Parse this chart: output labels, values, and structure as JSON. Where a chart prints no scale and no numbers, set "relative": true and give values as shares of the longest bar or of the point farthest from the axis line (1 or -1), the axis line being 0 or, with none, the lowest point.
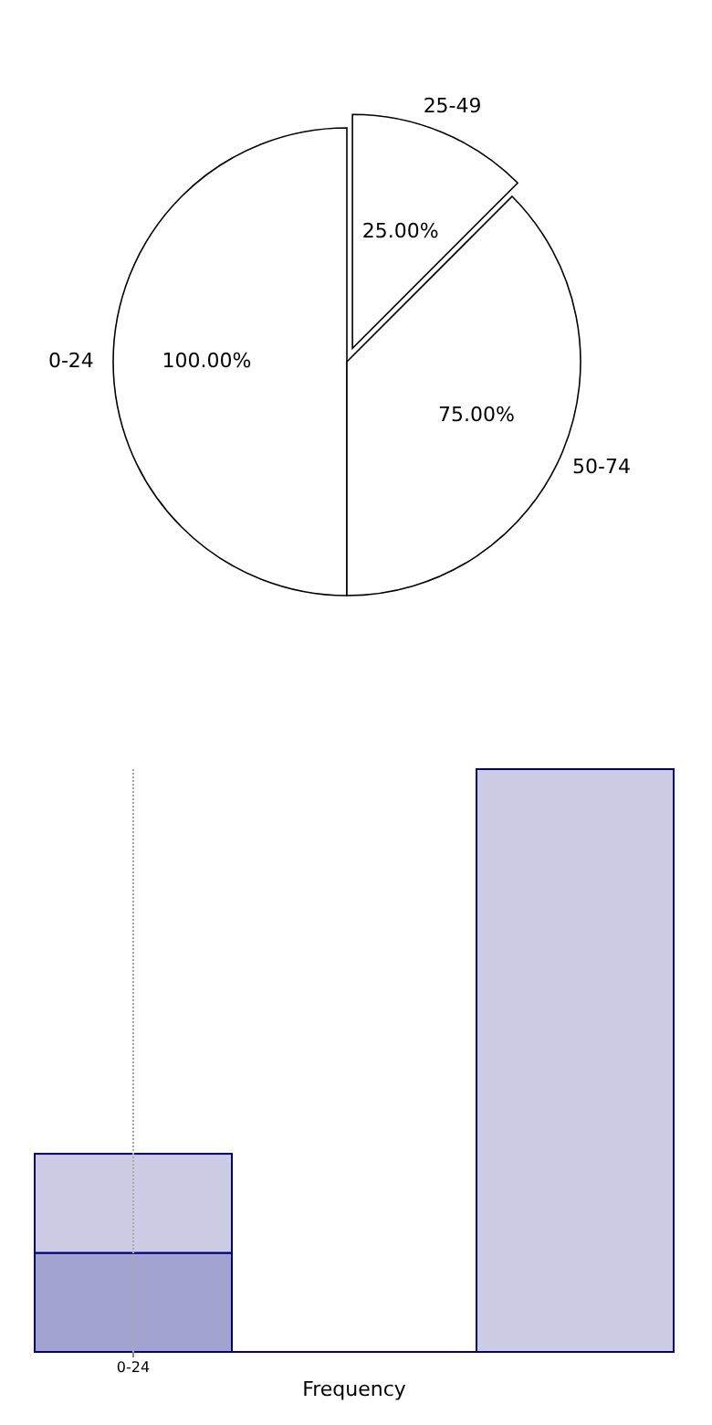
{
  "chart_data": [
    {
      "type": "pie",
      "categories": [
        "0-24",
        "25-49",
        "50-74"
      ],
      "values": [
        100,
        25,
        75
      ],
      "value_labels": [
        "100.00%",
        "25.00%",
        "75.00%"
      ],
      "colors": [
        "#ffffff",
        "#ffffff",
        "#ffffff"
      ]
    },
    {
      "type": "bar",
      "categories": [
        "0-24",
        null
      ],
      "relative": true,
      "stacked": true,
      "xlabel": "Frequency",
      "ref_lines": [
        {
          "axis": "x",
          "value": "0-24",
          "color": "#aaaaaa",
          "line_style": "dotted"
        }
      ],
      "series": [
        {
          "color": "#a3a3d0",
          "values": [
            0.17,
            null
          ]
        },
        {
          "color": "#ccccE4",
          "values": [
            0.17,
            1
          ]
        }
      ]
    }
  ]
}
